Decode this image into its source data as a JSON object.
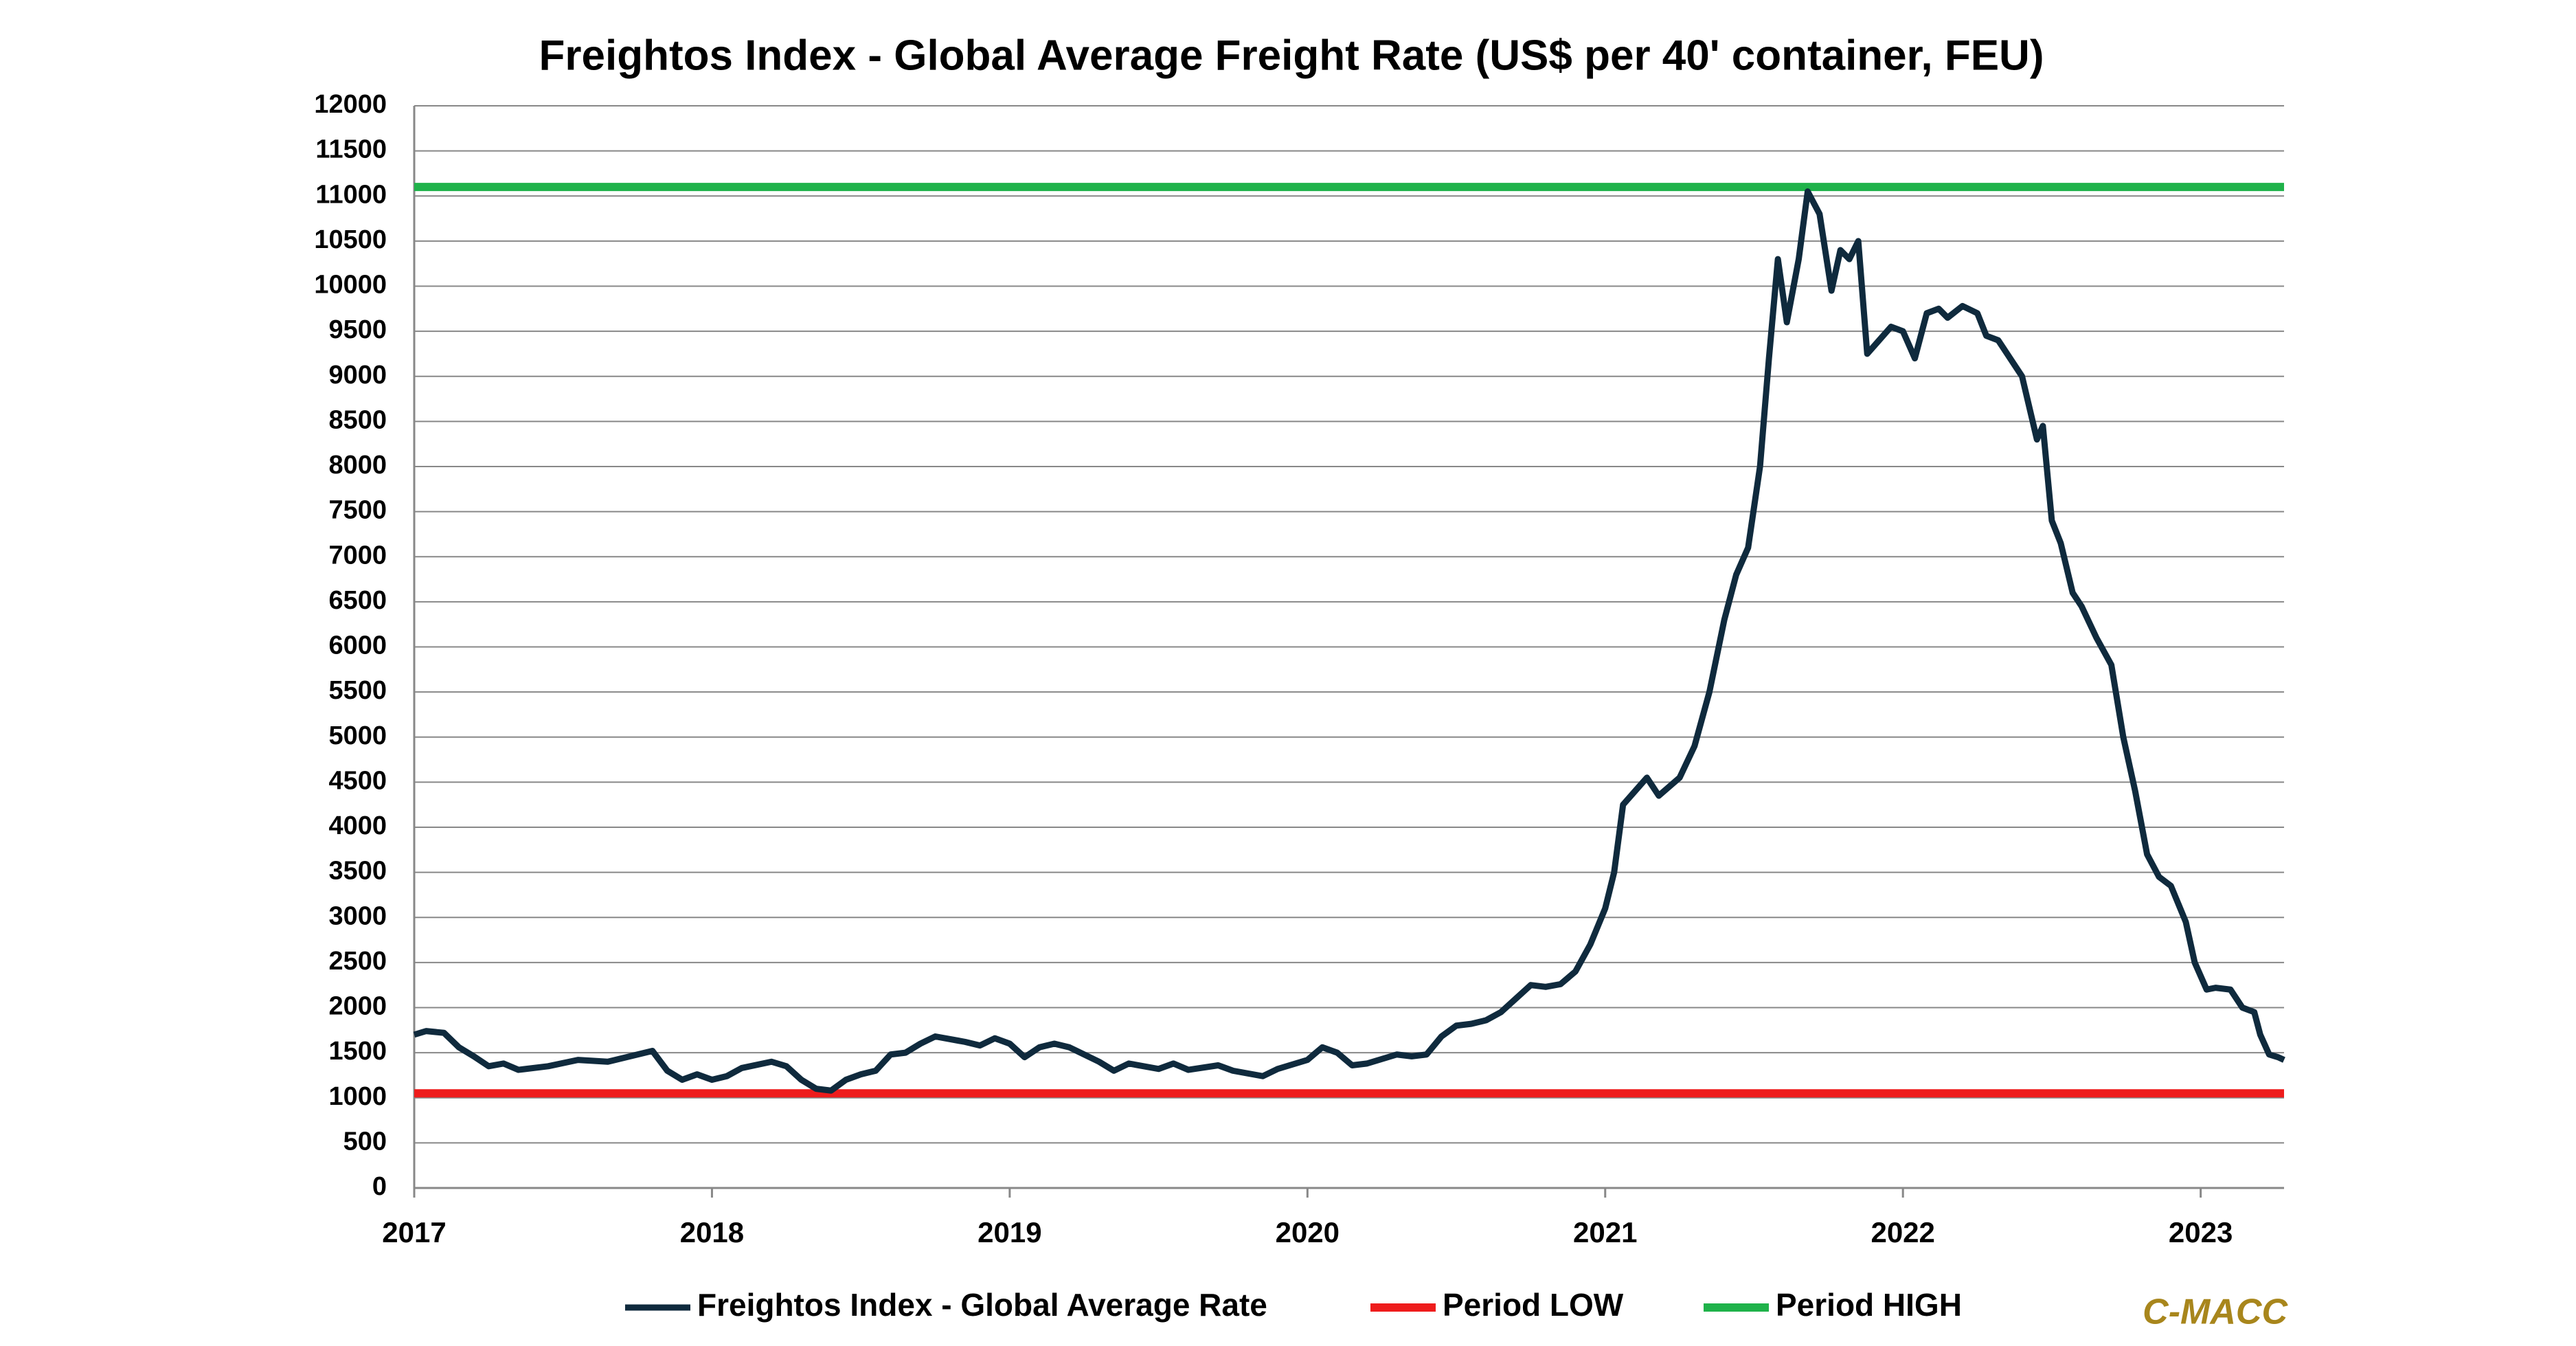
{
  "chart_data": {
    "type": "line",
    "title": "Freightos Index - Global Average Freight Rate (US$ per 40' container, FEU)",
    "source": "C-MACC",
    "xlim": [
      2017,
      2023.28
    ],
    "xticks": [
      2017,
      2018,
      2019,
      2020,
      2021,
      2022,
      2023
    ],
    "ylim": [
      0,
      12000
    ],
    "yticks": [
      0,
      500,
      1000,
      1500,
      2000,
      2500,
      3000,
      3500,
      4000,
      4500,
      5000,
      5500,
      6000,
      6500,
      7000,
      7500,
      8000,
      8500,
      9000,
      9500,
      10000,
      10500,
      11000,
      11500,
      12000
    ],
    "grid": true,
    "series": [
      {
        "name": "Freightos Index - Global Average Rate",
        "color": "#0f2a3d",
        "x": [
          2017.0,
          2017.04,
          2017.1,
          2017.15,
          2017.2,
          2017.25,
          2017.3,
          2017.35,
          2017.45,
          2017.55,
          2017.65,
          2017.75,
          2017.8,
          2017.85,
          2017.9,
          2017.95,
          2018.0,
          2018.05,
          2018.1,
          2018.2,
          2018.25,
          2018.3,
          2018.35,
          2018.4,
          2018.45,
          2018.5,
          2018.55,
          2018.6,
          2018.65,
          2018.7,
          2018.75,
          2018.85,
          2018.9,
          2018.95,
          2019.0,
          2019.05,
          2019.1,
          2019.15,
          2019.2,
          2019.3,
          2019.35,
          2019.4,
          2019.5,
          2019.55,
          2019.6,
          2019.7,
          2019.75,
          2019.85,
          2019.9,
          2020.0,
          2020.05,
          2020.1,
          2020.15,
          2020.2,
          2020.3,
          2020.35,
          2020.4,
          2020.45,
          2020.5,
          2020.55,
          2020.6,
          2020.65,
          2020.7,
          2020.75,
          2020.8,
          2020.85,
          2020.9,
          2020.95,
          2021.0,
          2021.03,
          2021.06,
          2021.1,
          2021.14,
          2021.18,
          2021.25,
          2021.3,
          2021.35,
          2021.4,
          2021.44,
          2021.48,
          2021.52,
          2021.55,
          2021.58,
          2021.61,
          2021.65,
          2021.68,
          2021.72,
          2021.76,
          2021.79,
          2021.82,
          2021.85,
          2021.88,
          2021.92,
          2021.96,
          2022.0,
          2022.04,
          2022.08,
          2022.12,
          2022.15,
          2022.2,
          2022.25,
          2022.28,
          2022.32,
          2022.36,
          2022.4,
          2022.45,
          2022.47,
          2022.5,
          2022.53,
          2022.57,
          2022.6,
          2022.65,
          2022.7,
          2022.74,
          2022.78,
          2022.82,
          2022.86,
          2022.9,
          2022.95,
          2022.98,
          2023.02,
          2023.05,
          2023.1,
          2023.14,
          2023.18,
          2023.2,
          2023.23,
          2023.26,
          2023.28
        ],
        "values": [
          1700,
          1740,
          1720,
          1560,
          1460,
          1350,
          1380,
          1310,
          1350,
          1420,
          1400,
          1480,
          1520,
          1300,
          1200,
          1260,
          1200,
          1240,
          1330,
          1400,
          1350,
          1200,
          1100,
          1080,
          1200,
          1260,
          1300,
          1480,
          1500,
          1600,
          1680,
          1620,
          1580,
          1660,
          1600,
          1450,
          1560,
          1600,
          1560,
          1400,
          1300,
          1380,
          1320,
          1380,
          1310,
          1360,
          1300,
          1240,
          1320,
          1420,
          1560,
          1500,
          1360,
          1380,
          1480,
          1460,
          1480,
          1680,
          1800,
          1820,
          1860,
          1950,
          2100,
          2250,
          2230,
          2260,
          2400,
          2700,
          3100,
          3500,
          4250,
          4400,
          4550,
          4350,
          4550,
          4900,
          5500,
          6300,
          6800,
          7100,
          8000,
          9200,
          10300,
          9600,
          10300,
          11050,
          10800,
          9950,
          10400,
          10300,
          10500,
          9250,
          9400,
          9550,
          9500,
          9200,
          9700,
          9750,
          9650,
          9780,
          9700,
          9450,
          9400,
          9200,
          9000,
          8300,
          8450,
          7400,
          7150,
          6600,
          6450,
          6100,
          5800,
          5000,
          4400,
          3700,
          3450,
          3350,
          2950,
          2500,
          2200,
          2220,
          2200,
          2000,
          1950,
          1700,
          1480,
          1450,
          1420
        ]
      },
      {
        "name": "Period LOW",
        "color": "#ee1c1c",
        "x": [
          2017,
          2023.28
        ],
        "values": [
          1050,
          1050
        ]
      },
      {
        "name": "Period HIGH",
        "color": "#1fb24a",
        "x": [
          2017,
          2023.28
        ],
        "values": [
          11100,
          11100
        ]
      }
    ]
  }
}
